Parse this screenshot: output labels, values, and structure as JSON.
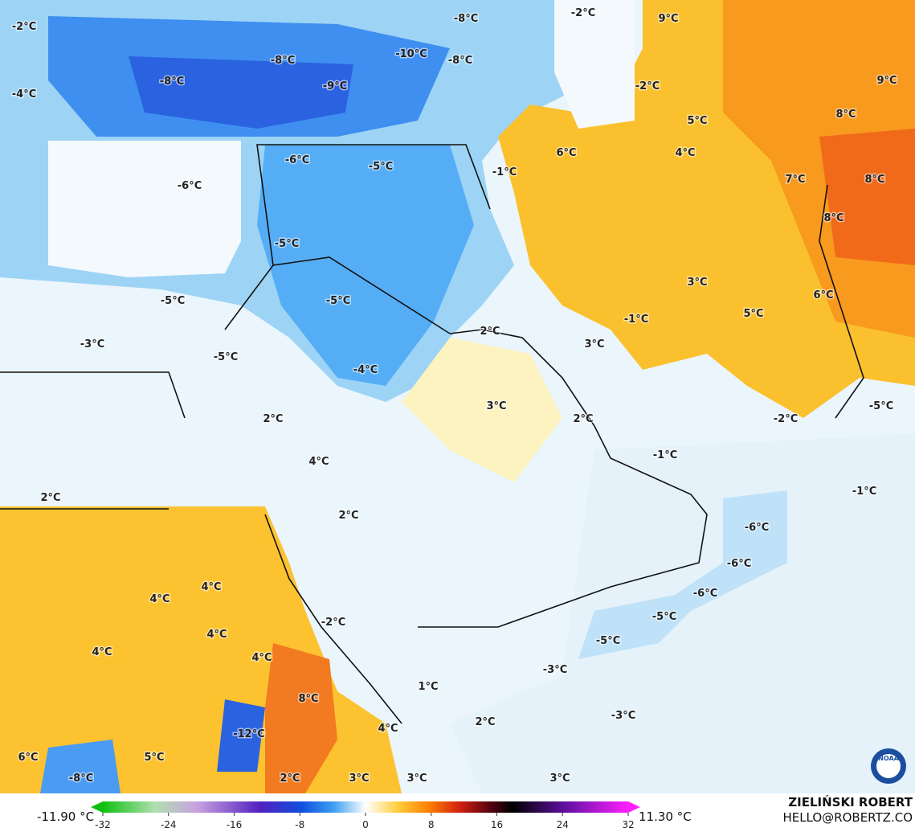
{
  "labels": [
    "-2°C",
    "-8°C",
    "-2°C",
    "9°C",
    "-10°C",
    "-8°C",
    "-8°C",
    "-8°C",
    "-9°C",
    "-4°C",
    "9°C",
    "-2°C",
    "8°C",
    "5°C",
    "6°C",
    "4°C",
    "-6°C",
    "-5°C",
    "-1°C",
    "-6°C",
    "7°C",
    "8°C",
    "8°C",
    "-5°C",
    "3°C",
    "-5°C",
    "-5°C",
    "6°C",
    "5°C",
    "-1°C",
    "2°C",
    "-3°C",
    "3°C",
    "-5°C",
    "-4°C",
    "3°C",
    "2°C",
    "2°C",
    "-2°C",
    "-5°C",
    "-1°C",
    "4°C",
    "2°C",
    "-1°C",
    "2°C",
    "-6°C",
    "-6°C",
    "-6°C",
    "4°C",
    "4°C",
    "-5°C",
    "-2°C",
    "4°C",
    "-5°C",
    "4°C",
    "4°C",
    "-3°C",
    "1°C",
    "8°C",
    "-3°C",
    "2°C",
    "-12°C",
    "4°C",
    "6°C",
    "5°C",
    "-8°C",
    "2°C",
    "3°C",
    "3°C",
    "3°C"
  ],
  "colorbar": {
    "min_label": "-11.90 °C",
    "max_label": "11.30 °C",
    "lim": [
      -32,
      32
    ],
    "ticks": [
      -32,
      -24,
      -16,
      -8,
      0,
      8,
      16,
      24,
      32
    ]
  },
  "credits": {
    "author": "ZIELIŃSKI ROBERT",
    "email": "HELLO@ROBERTZ.CO",
    "logo": "NOAA"
  }
}
